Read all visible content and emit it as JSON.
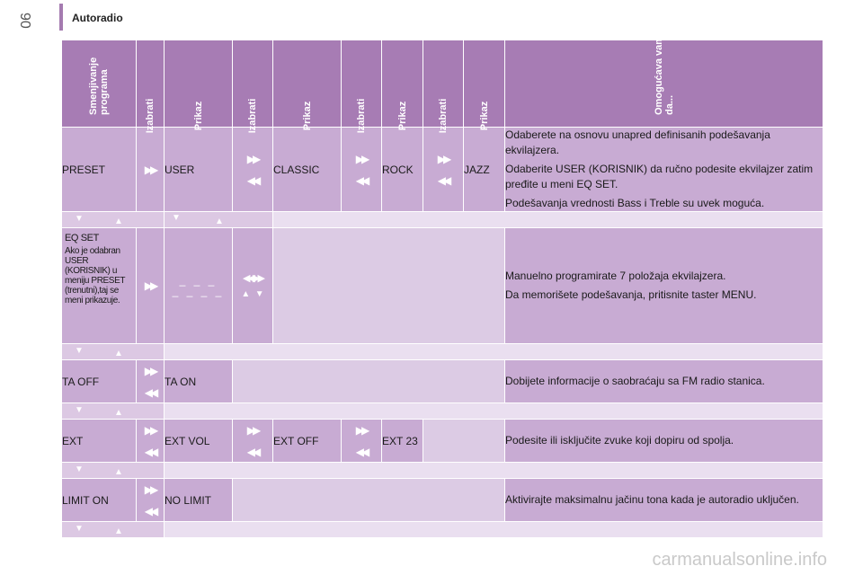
{
  "page": {
    "number": "90",
    "title": "Autoradio"
  },
  "headers": [
    "Smenjivanje programa",
    "Izabrati",
    "Prikaz",
    "Izabrati",
    "Prikaz",
    "Izabrati",
    "Prikaz",
    "Izabrati",
    "Prikaz",
    "Omogućava vam da..."
  ],
  "rows": {
    "preset": {
      "c1": "PRESET",
      "c3": "USER",
      "c5": "CLASSIC",
      "c7": "ROCK",
      "c9": "JAZZ",
      "desc": [
        "Odaberete na osnovu unapred definisanih podešavanja ekvilajzera.",
        "Odaberite USER (KORISNIK) da ručno podesite ekvilajzer zatim pređite u meni EQ SET.",
        "Podešavanja vrednosti Bass i Treble su uvek moguća."
      ]
    },
    "eq": {
      "title": "EQ SET",
      "note": "Ako je odabran USER (KORISNIK) u meniju PRESET (trenutni),taj se meni prikazuje.",
      "display_top": "_ _ _",
      "display_bottom": "_ _ _ _",
      "desc": [
        "Manuelno programirate 7 položaja ekvilajzera.",
        "Da memorišete podešavanja, pritisnite taster MENU."
      ]
    },
    "ta": {
      "c1": "TA OFF",
      "c3": "TA ON",
      "desc": "Dobijete informacije o saobraćaju sa FM radio stanica."
    },
    "ext": {
      "c1": "EXT",
      "c3": "EXT VOL",
      "c5": "EXT OFF",
      "c7": "EXT 23",
      "desc": "Podesite ili isključite zvuke koji dopiru od spolja."
    },
    "limit": {
      "c1": "LIMIT ON",
      "c3": "NO LIMIT",
      "desc": "Aktivirajte maksimalnu jačinu tona kada je autoradio uključen."
    }
  },
  "icons": {
    "forward": "fast-forward-icon",
    "rewind": "rewind-icon",
    "down": "triangle-down-icon",
    "up": "triangle-up-icon"
  },
  "colors": {
    "header": "#a77cb4",
    "row": "#c8abd3",
    "light": "#eadff0"
  },
  "watermark": "carmanualsonline.info"
}
